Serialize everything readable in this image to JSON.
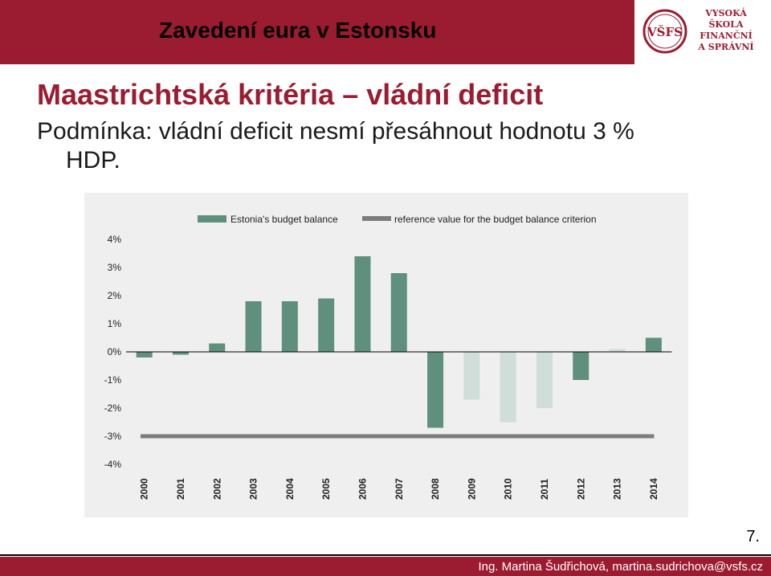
{
  "header": {
    "title": "Zavedení eura v Estonsku"
  },
  "logo": {
    "monogram": "VŠFS",
    "line1": "VYSOKÁ ŠKOLA",
    "line2": "FINANČNÍ",
    "line3": "A SPRÁVNÍ"
  },
  "slide": {
    "title": "Maastrichtská kritéria – vládní deficit",
    "subtitle_line1": "Podmínka: vládní deficit nesmí přesáhnout hodnotu 3 %",
    "subtitle_line2": "HDP."
  },
  "page_number": "7.",
  "footer": {
    "text": "Ing. Martina Šudřichová, martina.sudrichova@vsfs.cz"
  },
  "colors": {
    "brand": "#9b1c31",
    "bar_dark": "#5f8f7d",
    "bar_light": "#cfded8",
    "reference": "#7d7d7d"
  },
  "chart_data": {
    "type": "bar",
    "categories": [
      "2000",
      "2001",
      "2002",
      "2003",
      "2004",
      "2005",
      "2006",
      "2007",
      "2008",
      "2009",
      "2010",
      "2011",
      "2012",
      "2013",
      "2014"
    ],
    "series": [
      {
        "name": "Estonia's budget balance",
        "values": [
          -0.2,
          -0.1,
          0.3,
          1.8,
          1.8,
          1.9,
          3.4,
          2.8,
          -2.7,
          -1.7,
          -2.5,
          -2.0,
          -1.0,
          0.1,
          0.5
        ],
        "shade": [
          "dark",
          "dark",
          "dark",
          "dark",
          "dark",
          "dark",
          "dark",
          "dark",
          "dark",
          "light",
          "light",
          "light",
          "dark",
          "light",
          "dark"
        ]
      },
      {
        "name": "reference value for the budget balance criterion",
        "type": "line",
        "value": -3
      }
    ],
    "yticks": [
      "4%",
      "3%",
      "2%",
      "1%",
      "0%",
      "-1%",
      "-2%",
      "-3%",
      "-4%"
    ],
    "ylim": [
      -4,
      4
    ],
    "legend_position": "top"
  }
}
